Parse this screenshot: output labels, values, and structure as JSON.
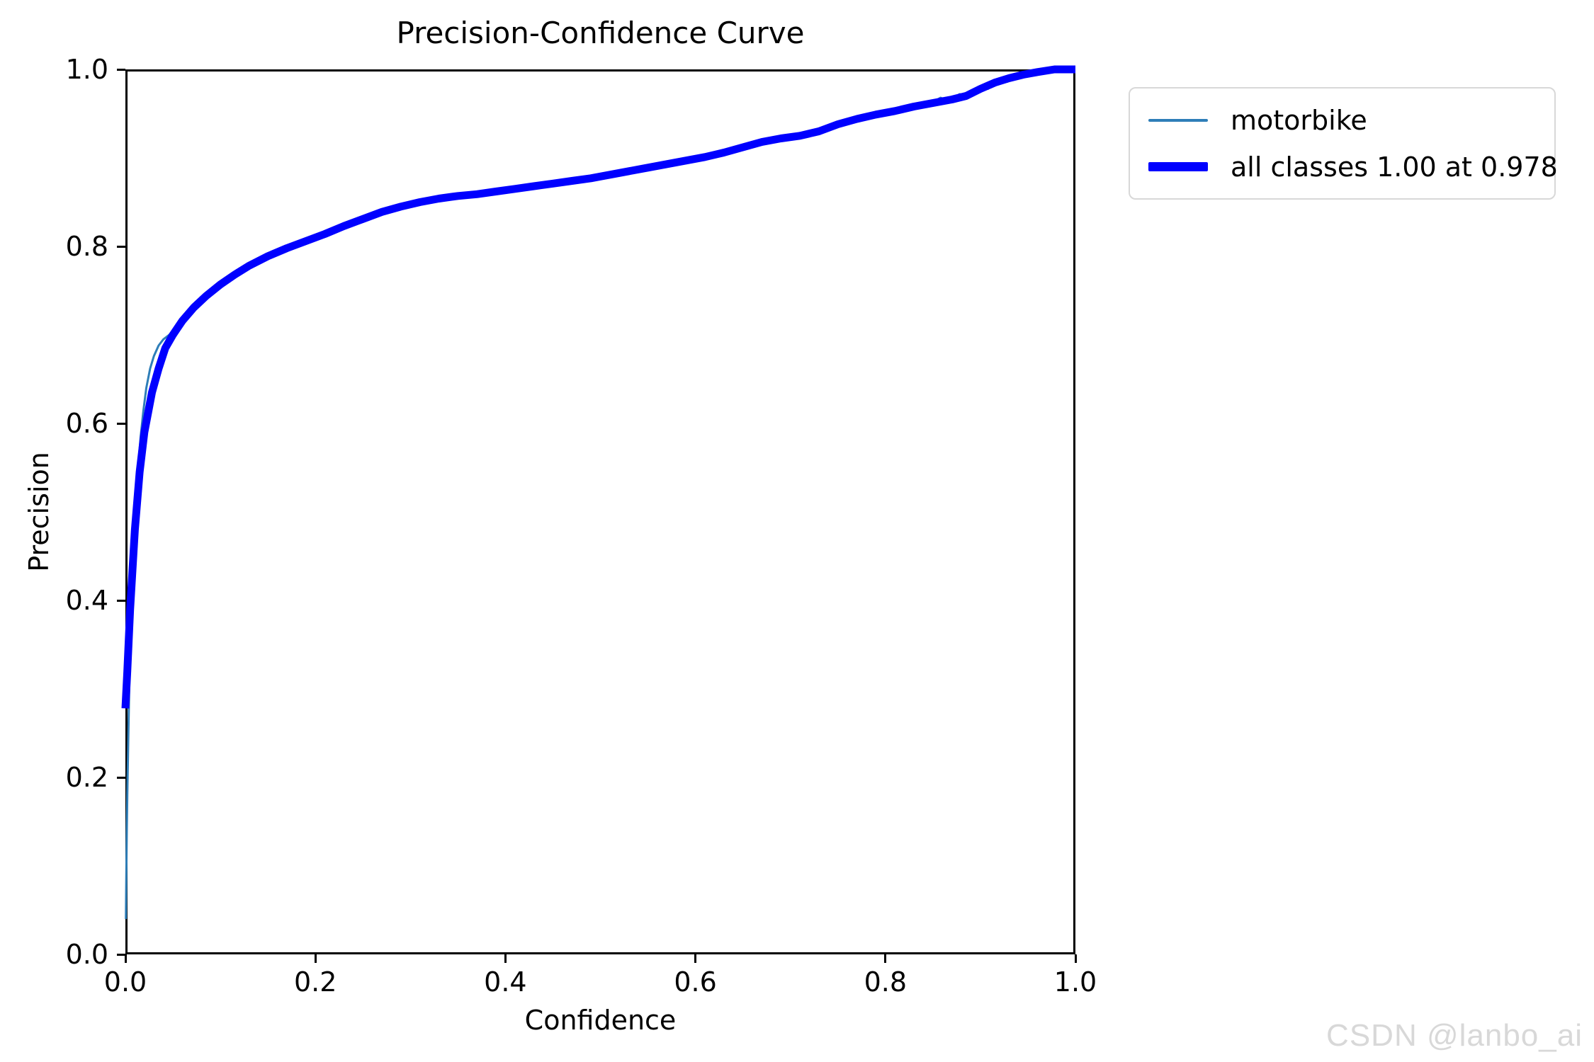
{
  "watermark": "CSDN @lanbo_ai",
  "chart_data": {
    "type": "line",
    "title": "Precision-Confidence Curve",
    "xlabel": "Confidence",
    "ylabel": "Precision",
    "xlim": [
      0.0,
      1.0
    ],
    "ylim": [
      0.0,
      1.0
    ],
    "xticks": [
      "0.0",
      "0.2",
      "0.4",
      "0.6",
      "0.8",
      "1.0"
    ],
    "yticks": [
      "0.0",
      "0.2",
      "0.4",
      "0.6",
      "0.8",
      "1.0"
    ],
    "grid": false,
    "legend_position": "upper right outside plot",
    "series": [
      {
        "name": "motorbike",
        "color": "#2e7eb8",
        "stroke_width": 3,
        "points": [
          [
            0.0005,
            0.04
          ],
          [
            0.001,
            0.09
          ],
          [
            0.0015,
            0.14
          ],
          [
            0.002,
            0.18
          ],
          [
            0.003,
            0.24
          ],
          [
            0.004,
            0.3
          ],
          [
            0.005,
            0.35
          ],
          [
            0.007,
            0.42
          ],
          [
            0.009,
            0.47
          ],
          [
            0.011,
            0.51
          ],
          [
            0.013,
            0.545
          ],
          [
            0.016,
            0.585
          ],
          [
            0.019,
            0.615
          ],
          [
            0.022,
            0.64
          ],
          [
            0.026,
            0.662
          ],
          [
            0.03,
            0.676
          ],
          [
            0.035,
            0.688
          ],
          [
            0.04,
            0.695
          ],
          [
            0.046,
            0.7
          ],
          [
            0.055,
            0.71
          ],
          [
            0.065,
            0.722
          ],
          [
            0.08,
            0.738
          ],
          [
            0.1,
            0.757
          ],
          [
            0.13,
            0.778
          ],
          [
            0.17,
            0.798
          ],
          [
            0.21,
            0.814
          ],
          [
            0.25,
            0.831
          ],
          [
            0.29,
            0.845
          ],
          [
            0.33,
            0.854
          ],
          [
            0.37,
            0.859
          ],
          [
            0.41,
            0.865
          ],
          [
            0.45,
            0.871
          ],
          [
            0.49,
            0.877
          ],
          [
            0.53,
            0.885
          ],
          [
            0.57,
            0.893
          ],
          [
            0.61,
            0.901
          ],
          [
            0.65,
            0.912
          ],
          [
            0.69,
            0.922
          ],
          [
            0.73,
            0.93
          ],
          [
            0.77,
            0.944
          ],
          [
            0.81,
            0.953
          ],
          [
            0.845,
            0.96
          ],
          [
            0.858,
            0.968
          ],
          [
            0.868,
            0.964
          ],
          [
            0.878,
            0.972
          ],
          [
            0.888,
            0.97
          ],
          [
            0.898,
            0.98
          ],
          [
            0.908,
            0.978
          ],
          [
            0.918,
            0.988
          ],
          [
            0.928,
            0.986
          ],
          [
            0.94,
            0.993
          ],
          [
            0.955,
            0.996
          ],
          [
            0.978,
            1.0
          ],
          [
            1.0,
            1.0
          ]
        ]
      },
      {
        "name": "all classes 1.00 at 0.978",
        "color": "#0000ff",
        "stroke_width": 11,
        "points": [
          [
            0.0,
            0.278
          ],
          [
            0.002,
            0.32
          ],
          [
            0.005,
            0.39
          ],
          [
            0.01,
            0.48
          ],
          [
            0.015,
            0.545
          ],
          [
            0.02,
            0.59
          ],
          [
            0.028,
            0.635
          ],
          [
            0.035,
            0.662
          ],
          [
            0.042,
            0.685
          ],
          [
            0.05,
            0.7
          ],
          [
            0.06,
            0.716
          ],
          [
            0.072,
            0.731
          ],
          [
            0.085,
            0.744
          ],
          [
            0.1,
            0.757
          ],
          [
            0.115,
            0.768
          ],
          [
            0.13,
            0.778
          ],
          [
            0.15,
            0.789
          ],
          [
            0.17,
            0.798
          ],
          [
            0.19,
            0.806
          ],
          [
            0.21,
            0.814
          ],
          [
            0.23,
            0.823
          ],
          [
            0.25,
            0.831
          ],
          [
            0.27,
            0.839
          ],
          [
            0.29,
            0.845
          ],
          [
            0.31,
            0.85
          ],
          [
            0.33,
            0.854
          ],
          [
            0.35,
            0.857
          ],
          [
            0.37,
            0.859
          ],
          [
            0.39,
            0.862
          ],
          [
            0.41,
            0.865
          ],
          [
            0.43,
            0.868
          ],
          [
            0.45,
            0.871
          ],
          [
            0.47,
            0.874
          ],
          [
            0.49,
            0.877
          ],
          [
            0.51,
            0.881
          ],
          [
            0.53,
            0.885
          ],
          [
            0.55,
            0.889
          ],
          [
            0.57,
            0.893
          ],
          [
            0.59,
            0.897
          ],
          [
            0.61,
            0.901
          ],
          [
            0.63,
            0.906
          ],
          [
            0.65,
            0.912
          ],
          [
            0.67,
            0.918
          ],
          [
            0.69,
            0.922
          ],
          [
            0.71,
            0.925
          ],
          [
            0.73,
            0.93
          ],
          [
            0.75,
            0.938
          ],
          [
            0.77,
            0.944
          ],
          [
            0.79,
            0.949
          ],
          [
            0.81,
            0.953
          ],
          [
            0.83,
            0.958
          ],
          [
            0.85,
            0.962
          ],
          [
            0.87,
            0.966
          ],
          [
            0.885,
            0.97
          ],
          [
            0.9,
            0.978
          ],
          [
            0.915,
            0.985
          ],
          [
            0.93,
            0.99
          ],
          [
            0.945,
            0.994
          ],
          [
            0.96,
            0.997
          ],
          [
            0.978,
            1.0
          ],
          [
            1.0,
            1.0
          ]
        ]
      }
    ]
  }
}
